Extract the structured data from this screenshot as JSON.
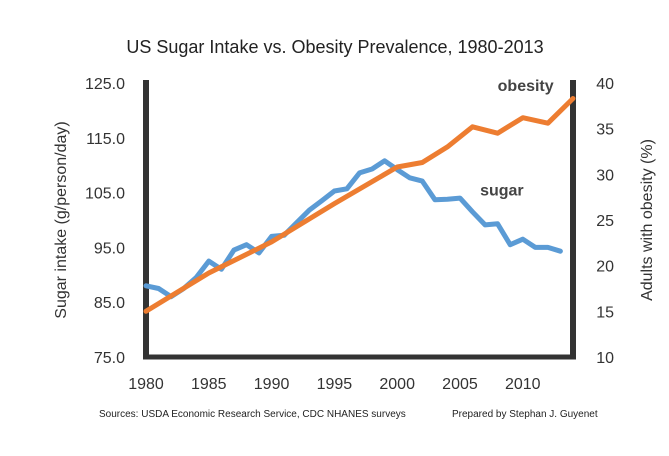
{
  "chart_data": {
    "type": "line",
    "title": "US Sugar Intake vs. Obesity Prevalence, 1980-2013",
    "xlabel": "",
    "ylabel_left": "Sugar intake (g/person/day)",
    "ylabel_right": "Adults with obesity (%)",
    "xlim": [
      1980,
      2014
    ],
    "ylim_left": [
      75,
      125
    ],
    "ylim_right": [
      10,
      40
    ],
    "x_ticks": [
      1980,
      1985,
      1990,
      1995,
      2000,
      2005,
      2010
    ],
    "y_ticks_left": [
      "75.0",
      "85.0",
      "95.0",
      "105.0",
      "115.0",
      "125.0"
    ],
    "y_ticks_right": [
      "10",
      "15",
      "20",
      "25",
      "30",
      "35",
      "40"
    ],
    "grid": false,
    "series": [
      {
        "name": "sugar",
        "axis": "left",
        "color": "#5b9bd5",
        "x": [
          1980,
          1981,
          1982,
          1983,
          1984,
          1985,
          1986,
          1987,
          1988,
          1989,
          1990,
          1991,
          1992,
          1993,
          1994,
          1995,
          1996,
          1997,
          1998,
          1999,
          2000,
          2001,
          2002,
          2003,
          2004,
          2005,
          2006,
          2007,
          2008,
          2009,
          2010,
          2011,
          2012,
          2013
        ],
        "values": [
          88.0,
          87.5,
          86.0,
          87.5,
          89.5,
          92.5,
          91.0,
          94.5,
          95.5,
          94.0,
          97.0,
          97.2,
          99.5,
          101.8,
          103.5,
          105.3,
          105.7,
          108.6,
          109.3,
          110.8,
          109.2,
          107.7,
          107.1,
          103.7,
          103.8,
          104.0,
          101.5,
          99.1,
          99.3,
          95.5,
          96.5,
          95.0,
          95.0,
          94.3
        ]
      },
      {
        "name": "obesity",
        "axis": "right",
        "color": "#ed7d31",
        "x": [
          1980,
          1985,
          1990,
          1995,
          2000,
          2002,
          2004,
          2006,
          2008,
          2010,
          2012,
          2014
        ],
        "values": [
          15.0,
          19.2,
          22.6,
          26.8,
          30.8,
          31.3,
          33.0,
          35.2,
          34.5,
          36.2,
          35.6,
          38.3
        ]
      }
    ],
    "annotations": [
      {
        "text": "obesity",
        "x": 2008,
        "y_right": 39.1
      },
      {
        "text": "sugar",
        "x": 2006.6,
        "y_left": 104.5
      }
    ]
  },
  "footer": {
    "sources": "Sources: USDA Economic Research Service, CDC NHANES surveys",
    "prepared_by": "Prepared by Stephan J. Guyenet"
  }
}
